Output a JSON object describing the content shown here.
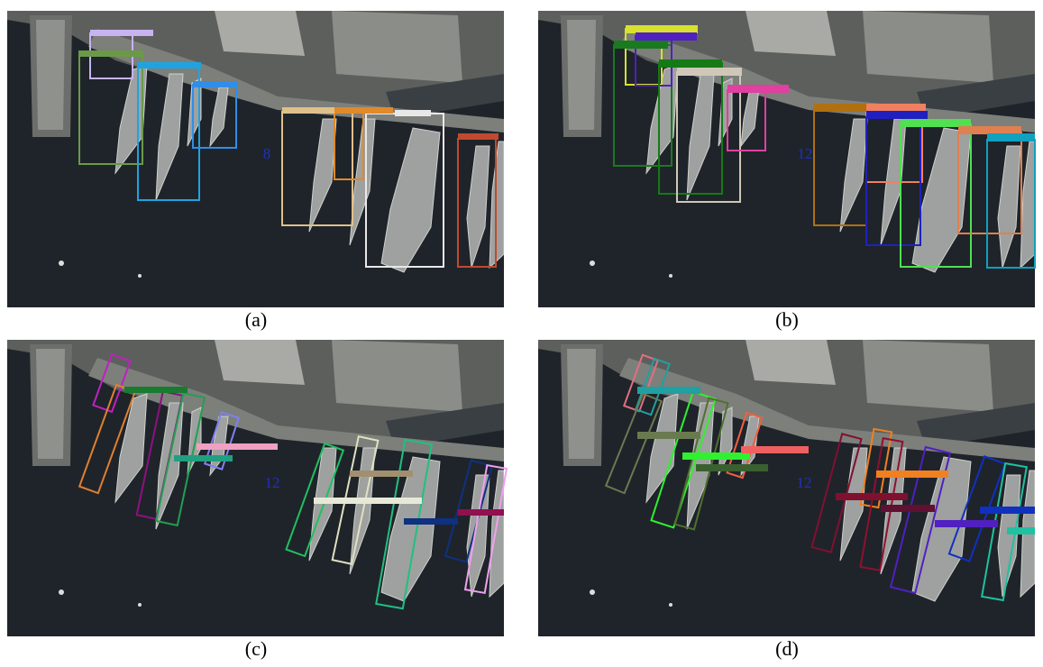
{
  "panels": [
    {
      "caption": "(a)",
      "count": 8
    },
    {
      "caption": "(b)",
      "count": 12
    },
    {
      "caption": "(c)",
      "count": 12
    },
    {
      "caption": "(d)",
      "count": 12
    }
  ]
}
